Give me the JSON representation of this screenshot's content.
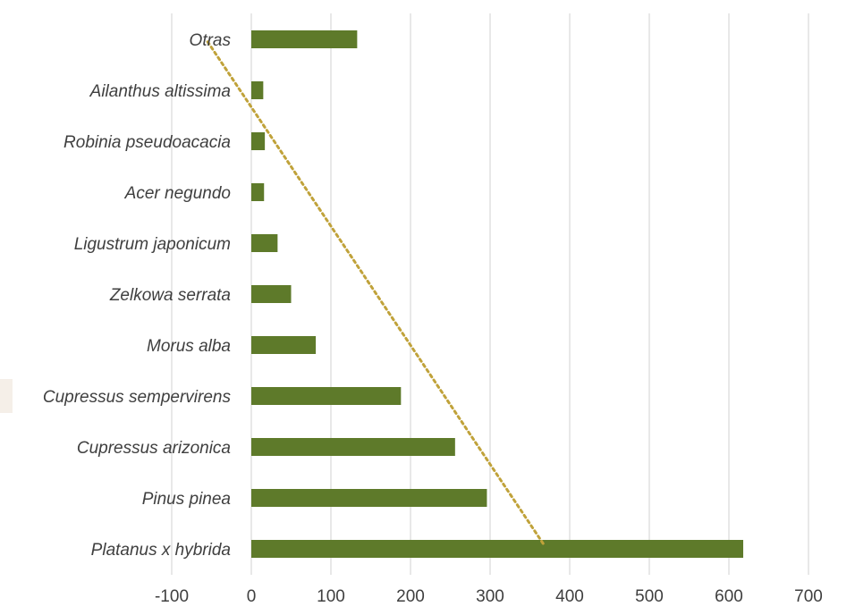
{
  "chart_data": {
    "type": "bar",
    "orientation": "horizontal",
    "categories": [
      "Platanus x hybrida",
      "Pinus pinea",
      "Cupressus arizonica",
      "Cupressus sempervirens",
      "Morus alba",
      "Zelkowa serrata",
      "Ligustrum japonicum",
      "Acer negundo",
      "Robinia pseudoacacia",
      "Ailanthus altissima",
      "Otras"
    ],
    "values": [
      618,
      296,
      256,
      188,
      81,
      50,
      33,
      16,
      17,
      15,
      133
    ],
    "xlim": [
      -100,
      700
    ],
    "xticks": [
      -100,
      0,
      100,
      200,
      300,
      400,
      500,
      600,
      700
    ],
    "xtick_labels": [
      "-100",
      "0",
      "100",
      "200",
      "300",
      "400",
      "500",
      "600",
      "700"
    ],
    "grid": "vertical",
    "legend": "none",
    "trendline": {
      "type": "linear",
      "style": "dotted"
    },
    "title": "",
    "xlabel": "",
    "ylabel": "",
    "colors": {
      "bar": "#5e7a2a",
      "trendline": "#c0a23a",
      "grid": "#d9d9d9",
      "text": "#3f3f3f"
    }
  }
}
